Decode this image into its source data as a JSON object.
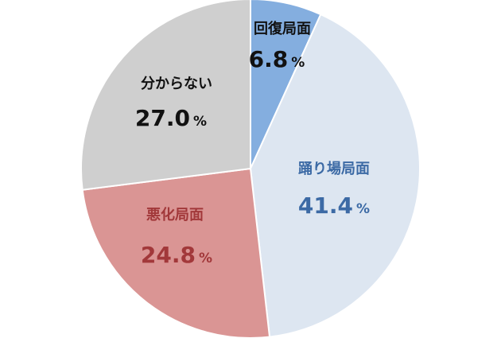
{
  "chart_data": {
    "type": "pie",
    "slices": [
      {
        "label": "回復局面",
        "value": 6.8,
        "value_text": "6.8",
        "unit": "%",
        "color": "#84aedf",
        "text_color": "#111111"
      },
      {
        "label": "踊り場局面",
        "value": 41.4,
        "value_text": "41.4",
        "unit": "%",
        "color": "#dde6f1",
        "text_color": "#3c6aa5"
      },
      {
        "label": "悪化局面",
        "value": 24.8,
        "value_text": "24.8",
        "unit": "%",
        "color": "#da9594",
        "text_color": "#a2383a"
      },
      {
        "label": "分からない",
        "value": 27.0,
        "value_text": "27.0",
        "unit": "%",
        "color": "#cfcfcf",
        "text_color": "#111111"
      }
    ]
  }
}
